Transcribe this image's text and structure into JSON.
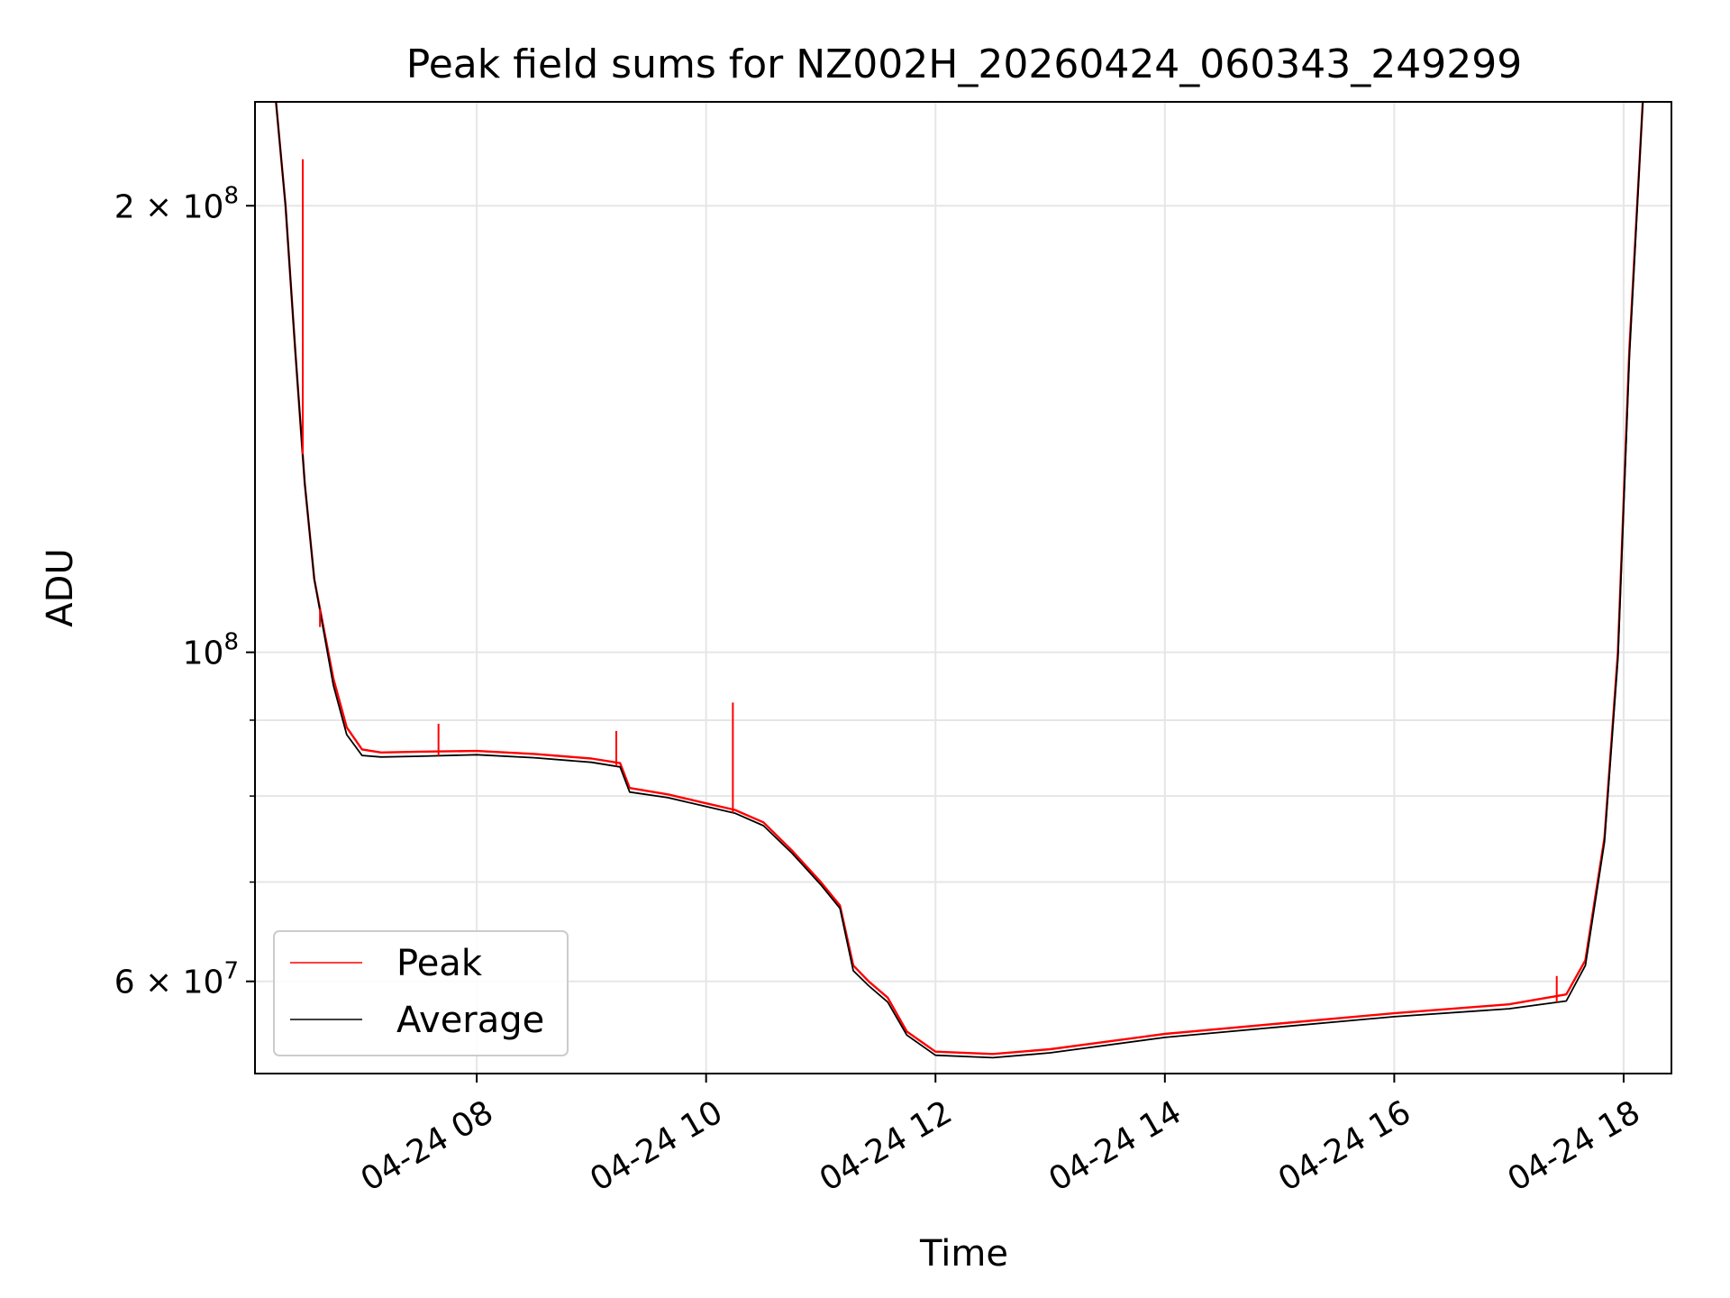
{
  "chart_data": {
    "type": "line",
    "title": "Peak field sums for NZ002H_20260424_060343_249299",
    "xlabel": "Time",
    "ylabel": "ADU",
    "y_scale": "log",
    "x_range": [
      "04-24 06:04",
      "04-24 18:25"
    ],
    "ylim": [
      52000000,
      235000000
    ],
    "grid": true,
    "legend_position": "lower-left",
    "x_ticks": [
      "04-24 08",
      "04-24 10",
      "04-24 12",
      "04-24 14",
      "04-24 16",
      "04-24 18"
    ],
    "y_ticks": [
      {
        "label": "2 × 10",
        "exp": "8",
        "value": 200000000
      },
      {
        "label": "10",
        "exp": "8",
        "value": 100000000
      },
      {
        "label": "6 × 10",
        "exp": "7",
        "value": 60000000
      }
    ],
    "series": [
      {
        "name": "Peak",
        "color": "#ff0000",
        "points": [
          [
            "04-24 06:15",
            235000000
          ],
          [
            "04-24 06:20",
            200000000
          ],
          [
            "04-24 06:25",
            160000000
          ],
          [
            "04-24 06:30",
            130000000
          ],
          [
            "04-24 06:35",
            112000000
          ],
          [
            "04-24 06:45",
            96000000
          ],
          [
            "04-24 06:52",
            89000000
          ],
          [
            "04-24 07:00",
            86000000
          ],
          [
            "04-24 07:10",
            85600000
          ],
          [
            "04-24 07:30",
            85700000
          ],
          [
            "04-24 08:00",
            85800000
          ],
          [
            "04-24 08:30",
            85400000
          ],
          [
            "04-24 09:00",
            84800000
          ],
          [
            "04-24 09:15",
            84200000
          ],
          [
            "04-24 09:20",
            81000000
          ],
          [
            "04-24 09:40",
            80200000
          ],
          [
            "04-24 10:00",
            79100000
          ],
          [
            "04-24 10:15",
            78300000
          ],
          [
            "04-24 10:30",
            76800000
          ],
          [
            "04-24 10:45",
            73500000
          ],
          [
            "04-24 11:00",
            70000000
          ],
          [
            "04-24 11:10",
            67500000
          ],
          [
            "04-24 11:17",
            61500000
          ],
          [
            "04-24 11:25",
            60000000
          ],
          [
            "04-24 11:35",
            58500000
          ],
          [
            "04-24 11:45",
            55500000
          ],
          [
            "04-24 12:00",
            53800000
          ],
          [
            "04-24 12:30",
            53600000
          ],
          [
            "04-24 13:00",
            54000000
          ],
          [
            "04-24 14:00",
            55300000
          ],
          [
            "04-24 15:00",
            56200000
          ],
          [
            "04-24 16:00",
            57100000
          ],
          [
            "04-24 17:00",
            57900000
          ],
          [
            "04-24 17:30",
            58800000
          ],
          [
            "04-24 17:40",
            62000000
          ],
          [
            "04-24 17:50",
            75000000
          ],
          [
            "04-24 17:57",
            100000000
          ],
          [
            "04-24 18:03",
            160000000
          ],
          [
            "04-24 18:10",
            235000000
          ]
        ]
      },
      {
        "name": "Average",
        "color": "#000000",
        "points": [
          [
            "04-24 06:15",
            235000000
          ],
          [
            "04-24 06:20",
            200000000
          ],
          [
            "04-24 06:25",
            160000000
          ],
          [
            "04-24 06:30",
            130000000
          ],
          [
            "04-24 06:35",
            112000000
          ],
          [
            "04-24 06:45",
            95000000
          ],
          [
            "04-24 06:52",
            88000000
          ],
          [
            "04-24 07:00",
            85200000
          ],
          [
            "04-24 07:10",
            85000000
          ],
          [
            "04-24 07:30",
            85100000
          ],
          [
            "04-24 08:00",
            85300000
          ],
          [
            "04-24 08:30",
            84900000
          ],
          [
            "04-24 09:00",
            84300000
          ],
          [
            "04-24 09:15",
            83700000
          ],
          [
            "04-24 09:20",
            80500000
          ],
          [
            "04-24 09:40",
            79800000
          ],
          [
            "04-24 10:00",
            78700000
          ],
          [
            "04-24 10:15",
            77900000
          ],
          [
            "04-24 10:30",
            76400000
          ],
          [
            "04-24 10:45",
            73200000
          ],
          [
            "04-24 11:00",
            69700000
          ],
          [
            "04-24 11:10",
            67200000
          ],
          [
            "04-24 11:17",
            61000000
          ],
          [
            "04-24 11:25",
            59600000
          ],
          [
            "04-24 11:35",
            58100000
          ],
          [
            "04-24 11:45",
            55200000
          ],
          [
            "04-24 12:00",
            53500000
          ],
          [
            "04-24 12:30",
            53300000
          ],
          [
            "04-24 13:00",
            53700000
          ],
          [
            "04-24 14:00",
            55000000
          ],
          [
            "04-24 15:00",
            55900000
          ],
          [
            "04-24 16:00",
            56800000
          ],
          [
            "04-24 17:00",
            57500000
          ],
          [
            "04-24 17:30",
            58200000
          ],
          [
            "04-24 17:40",
            61500000
          ],
          [
            "04-24 17:50",
            74500000
          ],
          [
            "04-24 17:57",
            99000000
          ],
          [
            "04-24 18:03",
            158000000
          ],
          [
            "04-24 18:10",
            235000000
          ]
        ]
      }
    ],
    "annotations": [
      {
        "series": "Peak",
        "x": "04-24 06:29",
        "y": 215000000
      },
      {
        "series": "Peak",
        "x": "04-24 06:38",
        "y": 104000000
      },
      {
        "series": "Peak",
        "x": "04-24 07:40",
        "y": 89500000
      },
      {
        "series": "Peak",
        "x": "04-24 09:13",
        "y": 88500000
      },
      {
        "series": "Peak",
        "x": "04-24 10:14",
        "y": 92500000
      },
      {
        "series": "Peak",
        "x": "04-24 17:25",
        "y": 60500000
      }
    ]
  }
}
